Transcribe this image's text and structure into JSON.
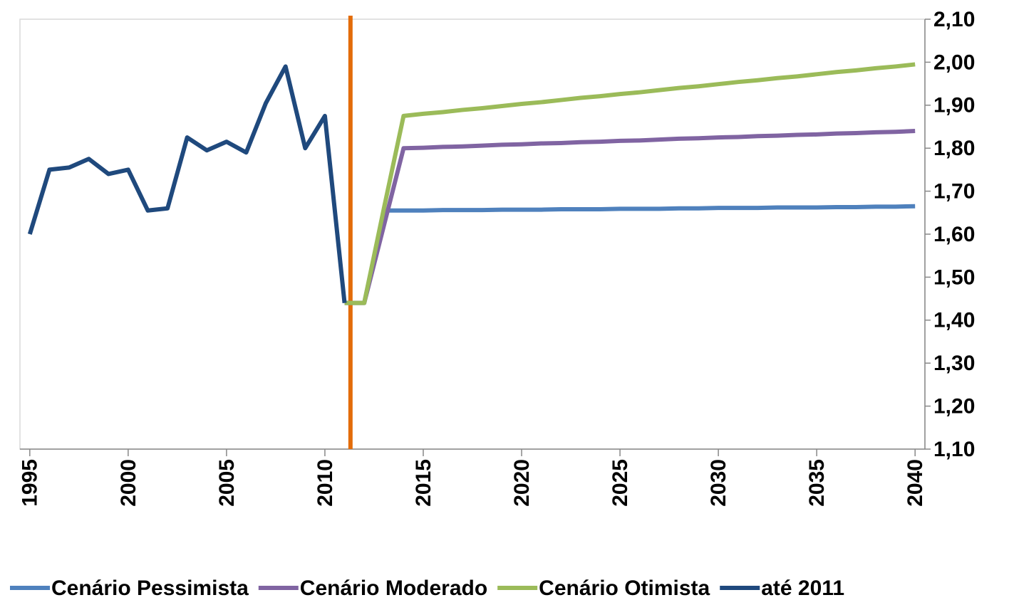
{
  "chart_data": {
    "type": "line",
    "x": [
      1995,
      1996,
      1997,
      1998,
      1999,
      2000,
      2001,
      2002,
      2003,
      2004,
      2005,
      2006,
      2007,
      2008,
      2009,
      2010,
      2011,
      2012,
      2013,
      2014,
      2015,
      2016,
      2017,
      2018,
      2019,
      2020,
      2021,
      2022,
      2023,
      2024,
      2025,
      2026,
      2027,
      2028,
      2029,
      2030,
      2031,
      2032,
      2033,
      2034,
      2035,
      2036,
      2037,
      2038,
      2039,
      2040
    ],
    "series": [
      {
        "name": "Cenário Pessimista",
        "color": "#4f81bd",
        "values": [
          null,
          null,
          null,
          null,
          null,
          null,
          null,
          null,
          null,
          null,
          null,
          null,
          null,
          null,
          null,
          null,
          1.44,
          1.44,
          1.655,
          1.655,
          1.655,
          1.656,
          1.656,
          1.656,
          1.657,
          1.657,
          1.657,
          1.658,
          1.658,
          1.658,
          1.659,
          1.659,
          1.659,
          1.66,
          1.66,
          1.661,
          1.661,
          1.661,
          1.662,
          1.662,
          1.662,
          1.663,
          1.663,
          1.664,
          1.664,
          1.665
        ]
      },
      {
        "name": "Cenário Moderado",
        "color": "#8064a2",
        "values": [
          null,
          null,
          null,
          null,
          null,
          null,
          null,
          null,
          null,
          null,
          null,
          null,
          null,
          null,
          null,
          null,
          1.44,
          1.44,
          1.62,
          1.8,
          1.801,
          1.803,
          1.804,
          1.806,
          1.808,
          1.809,
          1.811,
          1.812,
          1.814,
          1.815,
          1.817,
          1.818,
          1.82,
          1.822,
          1.823,
          1.825,
          1.826,
          1.828,
          1.829,
          1.831,
          1.832,
          1.834,
          1.835,
          1.837,
          1.838,
          1.84
        ]
      },
      {
        "name": "Cenário Otimista",
        "color": "#9bbb59",
        "values": [
          null,
          null,
          null,
          null,
          null,
          null,
          null,
          null,
          null,
          null,
          null,
          null,
          null,
          null,
          null,
          null,
          1.44,
          1.44,
          1.66,
          1.875,
          1.88,
          1.884,
          1.889,
          1.893,
          1.898,
          1.903,
          1.907,
          1.912,
          1.917,
          1.921,
          1.926,
          1.93,
          1.935,
          1.94,
          1.944,
          1.949,
          1.954,
          1.958,
          1.963,
          1.967,
          1.972,
          1.977,
          1.981,
          1.986,
          1.99,
          1.995
        ]
      },
      {
        "name": "até 2011",
        "color": "#1f497d",
        "values": [
          1.6,
          1.75,
          1.755,
          1.775,
          1.74,
          1.75,
          1.655,
          1.66,
          1.825,
          1.795,
          1.815,
          1.79,
          1.905,
          1.99,
          1.8,
          1.875,
          1.44,
          null,
          null,
          null,
          null,
          null,
          null,
          null,
          null,
          null,
          null,
          null,
          null,
          null,
          null,
          null,
          null,
          null,
          null,
          null,
          null,
          null,
          null,
          null,
          null,
          null,
          null,
          null,
          null,
          null
        ]
      }
    ],
    "xlim": [
      1994.5,
      2040.5
    ],
    "xticks": [
      1995,
      2000,
      2005,
      2010,
      2015,
      2020,
      2025,
      2030,
      2035,
      2040
    ],
    "ylim": [
      1.1,
      2.1
    ],
    "yticks": [
      {
        "value": 1.1,
        "label": "1,10"
      },
      {
        "value": 1.2,
        "label": "1,20"
      },
      {
        "value": 1.3,
        "label": "1,30"
      },
      {
        "value": 1.4,
        "label": "1,40"
      },
      {
        "value": 1.5,
        "label": "1,50"
      },
      {
        "value": 1.6,
        "label": "1,60"
      },
      {
        "value": 1.7,
        "label": "1,70"
      },
      {
        "value": 1.8,
        "label": "1,80"
      },
      {
        "value": 1.9,
        "label": "1,90"
      },
      {
        "value": 2.0,
        "label": "2,00"
      },
      {
        "value": 2.1,
        "label": "2,10"
      }
    ],
    "y_axis_side": "right",
    "vline": {
      "x": 2011.3,
      "color": "#e36c09"
    },
    "legend": "bottom"
  }
}
